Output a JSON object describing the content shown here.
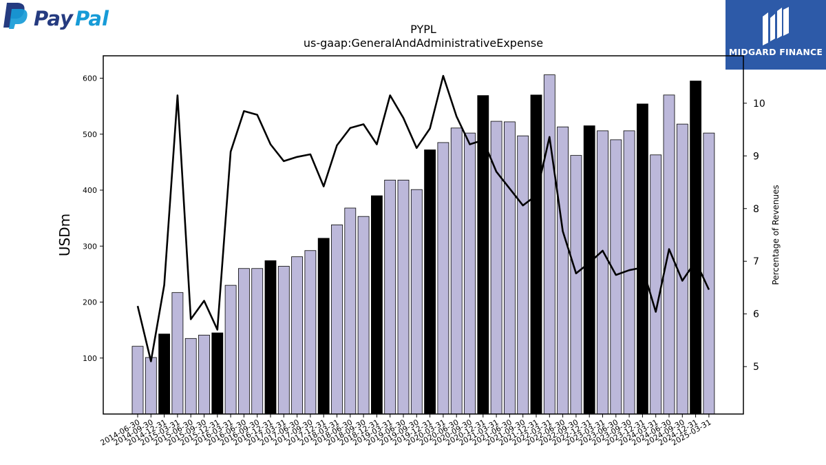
{
  "branding": {
    "left_logo_text_1": "Pay",
    "left_logo_text_2": "Pal",
    "right_logo_text": "MIDGARD FINANCE",
    "colors": {
      "paypal_dark": "#253b80",
      "paypal_light": "#179bd7",
      "midgard_bg": "#2d5aa8"
    }
  },
  "chart_data": {
    "type": "bar",
    "title": "PYPL",
    "subtitle": "us-gaap:GeneralAndAdministrativeExpense",
    "ylabel": "USDm",
    "y2label": "Percentage of Revenues",
    "ylim": [
      0,
      640
    ],
    "y2lim": [
      4.1,
      10.9
    ],
    "yticks": [
      100,
      200,
      300,
      400,
      500,
      600
    ],
    "y2ticks": [
      5,
      6,
      7,
      8,
      9,
      10
    ],
    "colors": {
      "bar": "#bcb8da",
      "bar_highlight": "#000000",
      "line": "#000000"
    },
    "categories": [
      "2014-06-30",
      "2014-09-30",
      "2014-12-31",
      "2015-03-31",
      "2015-06-30",
      "2015-09-30",
      "2015-12-31",
      "2016-03-31",
      "2016-06-30",
      "2016-09-30",
      "2016-12-31",
      "2017-03-31",
      "2017-06-30",
      "2017-09-30",
      "2017-12-31",
      "2018-03-31",
      "2018-06-30",
      "2018-09-30",
      "2018-12-31",
      "2019-03-31",
      "2019-06-30",
      "2019-09-30",
      "2019-12-31",
      "2020-03-31",
      "2020-06-30",
      "2020-09-30",
      "2020-12-31",
      "2021-03-31",
      "2021-06-30",
      "2021-09-30",
      "2021-12-31",
      "2022-03-31",
      "2022-06-30",
      "2022-09-30",
      "2022-12-31",
      "2023-03-31",
      "2023-06-30",
      "2023-09-30",
      "2023-12-31",
      "2024-03-31",
      "2024-06-30",
      "2024-09-30",
      "2024-12-31",
      "2025-03-31"
    ],
    "series": [
      {
        "type": "bar",
        "values": [
          121,
          101,
          143,
          217,
          135,
          141,
          145,
          230,
          260,
          260,
          274,
          264,
          281,
          292,
          314,
          338,
          368,
          353,
          390,
          418,
          418,
          401,
          472,
          485,
          511,
          502,
          569,
          523,
          522,
          497,
          570,
          606,
          513,
          462,
          515,
          506,
          490,
          506,
          554,
          463,
          570,
          518,
          595,
          502
        ],
        "highlight": [
          false,
          false,
          true,
          false,
          false,
          false,
          true,
          false,
          false,
          false,
          true,
          false,
          false,
          false,
          true,
          false,
          false,
          false,
          true,
          false,
          false,
          false,
          true,
          false,
          false,
          false,
          true,
          false,
          false,
          false,
          true,
          false,
          false,
          false,
          true,
          false,
          false,
          false,
          true,
          false,
          false,
          false,
          true,
          false
        ]
      },
      {
        "type": "line",
        "axis": "right",
        "values": [
          6.15,
          5.1,
          6.55,
          10.15,
          5.9,
          6.25,
          5.7,
          9.08,
          9.85,
          9.78,
          9.22,
          8.9,
          8.98,
          9.03,
          8.42,
          9.2,
          9.53,
          9.6,
          9.22,
          10.15,
          9.72,
          9.15,
          9.52,
          10.52,
          9.75,
          9.22,
          9.3,
          8.7,
          8.38,
          8.06,
          8.25,
          9.36,
          7.57,
          6.77,
          6.97,
          7.2,
          6.74,
          6.83,
          6.88,
          6.04,
          7.23,
          6.63,
          7.0,
          6.46
        ]
      }
    ]
  }
}
